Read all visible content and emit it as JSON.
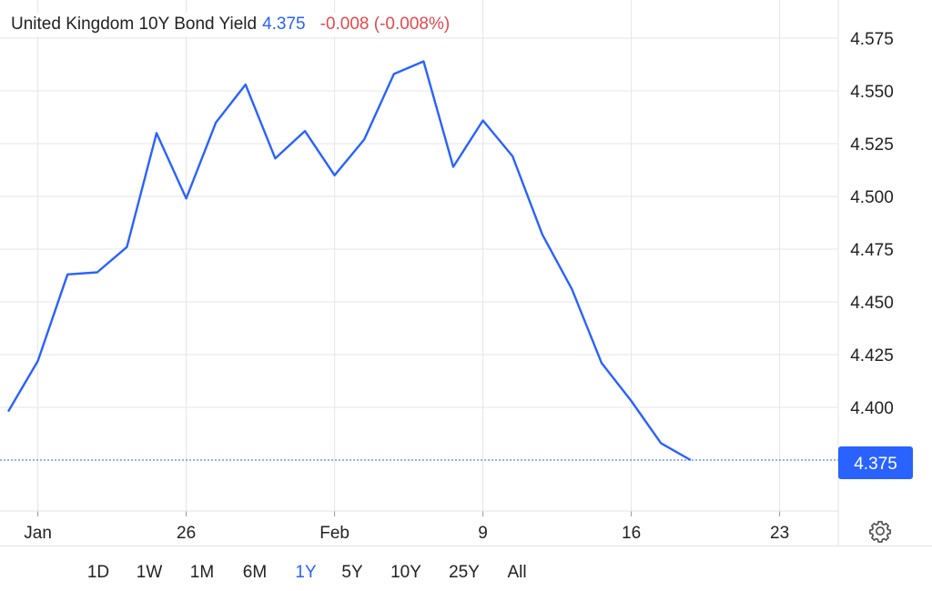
{
  "legend": {
    "title": "United Kingdom 10Y Bond Yield",
    "value": "4.375",
    "change": "-0.008 (-0.008%)"
  },
  "colors": {
    "line": "#2962ff",
    "negative": "#e5484d",
    "grid": "#e6e6e6"
  },
  "range_buttons": [
    {
      "label": "1D",
      "active": false
    },
    {
      "label": "1W",
      "active": false
    },
    {
      "label": "1M",
      "active": false
    },
    {
      "label": "6M",
      "active": false
    },
    {
      "label": "1Y",
      "active": true
    },
    {
      "label": "5Y",
      "active": false
    },
    {
      "label": "10Y",
      "active": false
    },
    {
      "label": "25Y",
      "active": false
    },
    {
      "label": "All",
      "active": false
    }
  ],
  "settings_icon": "gear-icon",
  "chart_data": {
    "type": "line",
    "title": "United Kingdom 10Y Bond Yield",
    "x_tick_labels": [
      {
        "label": "Jan",
        "index": 1
      },
      {
        "label": "26",
        "index": 6
      },
      {
        "label": "Feb",
        "index": 11
      },
      {
        "label": "9",
        "index": 16
      },
      {
        "label": "16",
        "index": 21
      },
      {
        "label": "23",
        "index": 26
      }
    ],
    "y_ticks": [
      "4.400",
      "4.425",
      "4.450",
      "4.475",
      "4.500",
      "4.525",
      "4.550",
      "4.575"
    ],
    "ylim": [
      4.351,
      4.592
    ],
    "last_value_label": "4.375",
    "series": [
      {
        "values": [
          4.398,
          4.422,
          4.463,
          4.464,
          4.476,
          4.53,
          4.499,
          4.535,
          4.553,
          4.518,
          4.531,
          4.51,
          4.527,
          4.558,
          4.564,
          4.514,
          4.536,
          4.519,
          4.482,
          4.456,
          4.421,
          4.403,
          4.383,
          4.375
        ]
      }
    ]
  }
}
